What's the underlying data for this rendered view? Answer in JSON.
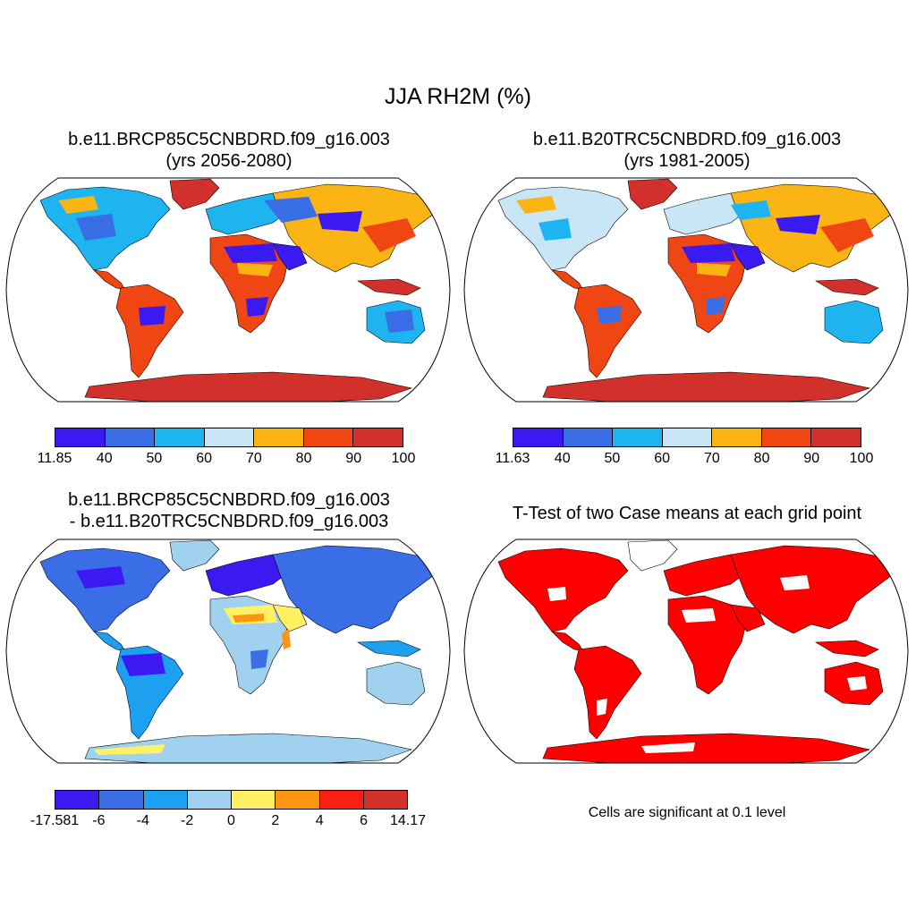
{
  "figure": {
    "title": "JJA RH2M (%)"
  },
  "panels": [
    {
      "id": "future",
      "title_line1": "b.e11.BRCP85C5CNBDRD.f09_g16.003",
      "title_line2": "(yrs 2056-2080)",
      "colorbar": {
        "colors": [
          "#3a1af0",
          "#3a6ee6",
          "#1eb4f0",
          "#c8e6f5",
          "#fab414",
          "#f04614",
          "#d2302a"
        ],
        "labels": [
          "11.85",
          "40",
          "50",
          "60",
          "70",
          "80",
          "90",
          "100"
        ]
      }
    },
    {
      "id": "historical",
      "title_line1": "b.e11.B20TRC5CNBDRD.f09_g16.003",
      "title_line2": "(yrs 1981-2005)",
      "colorbar": {
        "colors": [
          "#3a1af0",
          "#3a6ee6",
          "#1eb4f0",
          "#c8e6f5",
          "#fab414",
          "#f04614",
          "#d2302a"
        ],
        "labels": [
          "11.63",
          "40",
          "50",
          "60",
          "70",
          "80",
          "90",
          "100"
        ]
      }
    },
    {
      "id": "difference",
      "title_line1": "b.e11.BRCP85C5CNBDRD.f09_g16.003",
      "title_line2": "- b.e11.B20TRC5CNBDRD.f09_g16.003",
      "colorbar": {
        "colors": [
          "#3a1af0",
          "#3a6ee6",
          "#1ea0f0",
          "#a0d2f0",
          "#fff064",
          "#fa9614",
          "#fa1e14",
          "#d2302a"
        ],
        "labels": [
          "-17.581",
          "-6",
          "-4",
          "-2",
          "0",
          "2",
          "4",
          "6",
          "14.17"
        ]
      }
    },
    {
      "id": "ttest",
      "title_line1": "T-Test of two Case means at each grid point",
      "note": "Cells are significant at 0.1 level",
      "fill_color": "#ff0000"
    }
  ],
  "colors": {
    "desert": "#3a1af0",
    "dry": "#3a6ee6",
    "semi": "#1eb4f0",
    "moderate": "#c8e6f5",
    "humid": "#fab414",
    "wet": "#f04614",
    "verywet": "#d2302a",
    "diff_neg_big": "#3a1af0",
    "diff_neg": "#3a6ee6",
    "diff_neg_small": "#1ea0f0",
    "diff_near0": "#a0d2f0",
    "diff_pos_small": "#fff064",
    "diff_pos": "#fa9614",
    "sig": "#ff0000"
  }
}
